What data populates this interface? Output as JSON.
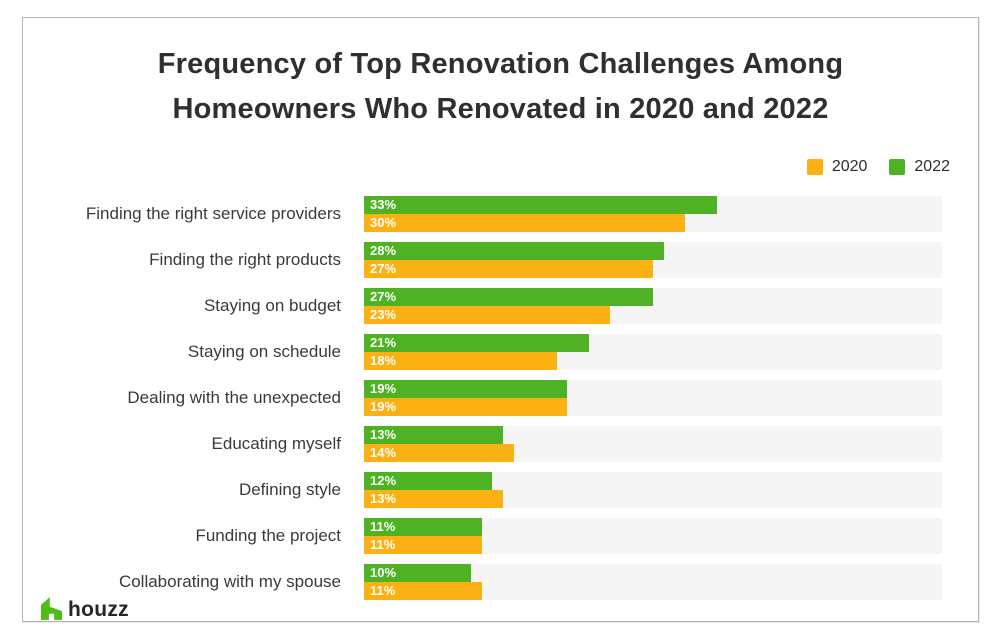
{
  "title": {
    "line1": "Frequency of Top Renovation Challenges Among",
    "line2": "Homeowners Who Renovated in 2020 and 2022"
  },
  "legend": {
    "items": [
      {
        "label": "2020",
        "color": "#FBB114"
      },
      {
        "label": "2022",
        "color": "#4FB224"
      }
    ]
  },
  "chart_data": {
    "type": "bar",
    "orientation": "horizontal",
    "title": "Frequency of Top Renovation Challenges Among Homeowners Who Renovated in 2020 and 2022",
    "categories": [
      "Finding the right service providers",
      "Finding the right products",
      "Staying on budget",
      "Staying on schedule",
      "Dealing with the unexpected",
      "Educating myself",
      "Defining style",
      "Funding the project",
      "Collaborating with my spouse"
    ],
    "series": [
      {
        "name": "2022",
        "color": "#4FB224",
        "values": [
          33,
          28,
          27,
          21,
          19,
          13,
          12,
          11,
          10
        ]
      },
      {
        "name": "2020",
        "color": "#FBB114",
        "values": [
          30,
          27,
          23,
          18,
          19,
          14,
          13,
          11,
          11
        ]
      }
    ],
    "value_suffix": "%",
    "xlim": [
      0,
      54
    ],
    "track_color": "#F5F5F6",
    "grid": false,
    "legend_position": "top-right"
  },
  "footer": {
    "logo_text": "houzz",
    "logo_color": "#4DBC15"
  }
}
